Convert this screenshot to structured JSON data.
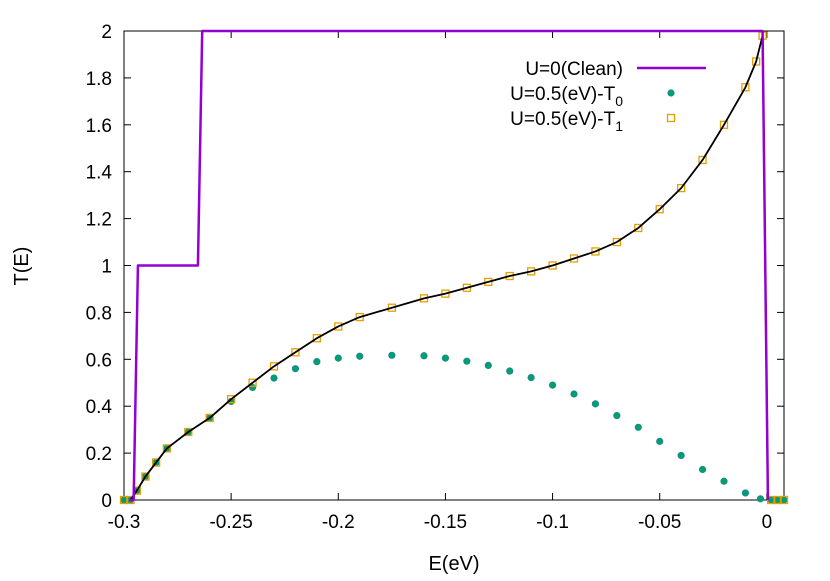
{
  "chart_data": {
    "type": "line",
    "xlabel": "E(eV)",
    "ylabel": "T(E)",
    "xlim": [
      -0.3,
      0.008
    ],
    "ylim": [
      0,
      2
    ],
    "x_ticks": [
      "-0.3",
      "-0.25",
      "-0.2",
      "-0.15",
      "-0.1",
      "-0.05",
      "0"
    ],
    "y_ticks": [
      "0",
      "0.2",
      "0.4",
      "0.6",
      "0.8",
      "1",
      "1.2",
      "1.4",
      "1.6",
      "1.8",
      "2"
    ],
    "legend_position": "top-right",
    "series": [
      {
        "name": "U=0(Clean)",
        "style": "line",
        "color": "#9400d3",
        "points": [
          [
            -0.2975,
            0
          ],
          [
            -0.2955,
            0
          ],
          [
            -0.2935,
            1
          ],
          [
            -0.2655,
            1
          ],
          [
            -0.2635,
            2
          ],
          [
            -0.002,
            2
          ],
          [
            0.0005,
            0
          ]
        ]
      },
      {
        "name": "U=0.5(eV)-T",
        "subscript": "0",
        "style": "filled-circle",
        "color": "#009e73",
        "points": [
          [
            -0.3,
            0
          ],
          [
            -0.297,
            0
          ],
          [
            -0.294,
            0.04
          ],
          [
            -0.29,
            0.1
          ],
          [
            -0.285,
            0.16
          ],
          [
            -0.28,
            0.22
          ],
          [
            -0.27,
            0.29
          ],
          [
            -0.26,
            0.35
          ],
          [
            -0.25,
            0.42
          ],
          [
            -0.24,
            0.48
          ],
          [
            -0.23,
            0.52
          ],
          [
            -0.22,
            0.56
          ],
          [
            -0.21,
            0.59
          ],
          [
            -0.2,
            0.605
          ],
          [
            -0.19,
            0.613
          ],
          [
            -0.175,
            0.617
          ],
          [
            -0.16,
            0.615
          ],
          [
            -0.15,
            0.605
          ],
          [
            -0.14,
            0.592
          ],
          [
            -0.13,
            0.574
          ],
          [
            -0.12,
            0.55
          ],
          [
            -0.11,
            0.522
          ],
          [
            -0.1,
            0.49
          ],
          [
            -0.09,
            0.452
          ],
          [
            -0.08,
            0.41
          ],
          [
            -0.07,
            0.36
          ],
          [
            -0.06,
            0.31
          ],
          [
            -0.05,
            0.25
          ],
          [
            -0.04,
            0.19
          ],
          [
            -0.03,
            0.13
          ],
          [
            -0.02,
            0.08
          ],
          [
            -0.01,
            0.03
          ],
          [
            -0.003,
            0.005
          ],
          [
            0.002,
            0
          ],
          [
            0.005,
            0
          ],
          [
            0.008,
            0
          ]
        ]
      },
      {
        "name": "U=0.5(eV)-T",
        "subscript": "1",
        "style": "open-square",
        "color": "#e69f00",
        "points": [
          [
            -0.3,
            0
          ],
          [
            -0.297,
            0
          ],
          [
            -0.294,
            0.04
          ],
          [
            -0.29,
            0.1
          ],
          [
            -0.285,
            0.16
          ],
          [
            -0.28,
            0.22
          ],
          [
            -0.27,
            0.29
          ],
          [
            -0.26,
            0.35
          ],
          [
            -0.25,
            0.43
          ],
          [
            -0.24,
            0.5
          ],
          [
            -0.23,
            0.57
          ],
          [
            -0.22,
            0.63
          ],
          [
            -0.21,
            0.69
          ],
          [
            -0.2,
            0.74
          ],
          [
            -0.19,
            0.78
          ],
          [
            -0.175,
            0.82
          ],
          [
            -0.16,
            0.86
          ],
          [
            -0.15,
            0.88
          ],
          [
            -0.14,
            0.905
          ],
          [
            -0.13,
            0.93
          ],
          [
            -0.12,
            0.955
          ],
          [
            -0.11,
            0.975
          ],
          [
            -0.1,
            1.0
          ],
          [
            -0.09,
            1.03
          ],
          [
            -0.08,
            1.06
          ],
          [
            -0.07,
            1.1
          ],
          [
            -0.06,
            1.16
          ],
          [
            -0.05,
            1.24
          ],
          [
            -0.04,
            1.33
          ],
          [
            -0.03,
            1.45
          ],
          [
            -0.02,
            1.6
          ],
          [
            -0.01,
            1.76
          ],
          [
            -0.005,
            1.87
          ],
          [
            -0.002,
            1.98
          ],
          [
            0.002,
            0
          ],
          [
            0.005,
            0
          ],
          [
            0.008,
            0
          ]
        ]
      },
      {
        "style": "line",
        "color": "#000000",
        "points": [
          [
            -0.297,
            0
          ],
          [
            -0.294,
            0.04
          ],
          [
            -0.29,
            0.1
          ],
          [
            -0.285,
            0.16
          ],
          [
            -0.28,
            0.22
          ],
          [
            -0.27,
            0.29
          ],
          [
            -0.26,
            0.35
          ],
          [
            -0.25,
            0.43
          ],
          [
            -0.24,
            0.5
          ],
          [
            -0.23,
            0.57
          ],
          [
            -0.22,
            0.63
          ],
          [
            -0.21,
            0.69
          ],
          [
            -0.2,
            0.74
          ],
          [
            -0.19,
            0.78
          ],
          [
            -0.175,
            0.82
          ],
          [
            -0.16,
            0.86
          ],
          [
            -0.15,
            0.88
          ],
          [
            -0.14,
            0.905
          ],
          [
            -0.13,
            0.93
          ],
          [
            -0.12,
            0.955
          ],
          [
            -0.11,
            0.975
          ],
          [
            -0.1,
            1.0
          ],
          [
            -0.09,
            1.03
          ],
          [
            -0.08,
            1.06
          ],
          [
            -0.07,
            1.1
          ],
          [
            -0.06,
            1.16
          ],
          [
            -0.05,
            1.24
          ],
          [
            -0.04,
            1.33
          ],
          [
            -0.03,
            1.45
          ],
          [
            -0.02,
            1.6
          ],
          [
            -0.01,
            1.76
          ],
          [
            -0.005,
            1.87
          ],
          [
            -0.002,
            1.98
          ],
          [
            0.0005,
            0
          ]
        ]
      }
    ]
  }
}
